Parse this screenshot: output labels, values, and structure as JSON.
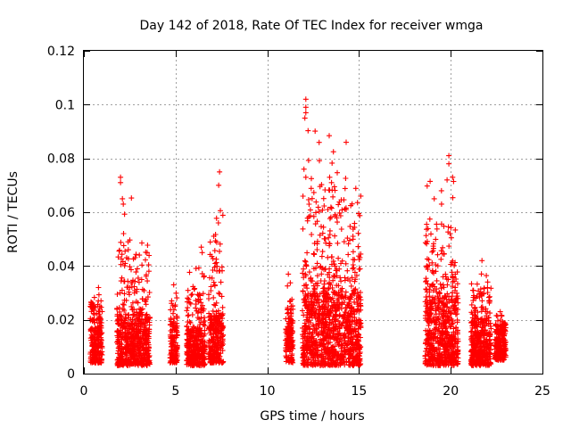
{
  "chart_data": {
    "type": "scatter",
    "title": "Day 142 of 2018, Rate Of TEC Index for receiver wmga",
    "xlabel": "GPS time / hours",
    "ylabel": "ROTI / TECUs",
    "xlim": [
      0,
      25
    ],
    "ylim": [
      0,
      0.12
    ],
    "xticks": [
      0,
      5,
      10,
      15,
      20,
      25
    ],
    "xtick_labels": [
      "0",
      "5",
      "10",
      "15",
      "20",
      "25"
    ],
    "yticks": [
      0,
      0.02,
      0.04,
      0.06,
      0.08,
      0.1,
      0.12
    ],
    "ytick_labels": [
      "0",
      "0.02",
      "0.04",
      "0.06",
      "0.08",
      "0.1",
      "0.12"
    ],
    "grid": true,
    "marker": "+",
    "series": [
      {
        "name": "ROTI",
        "color": "#ff0000",
        "clusters": [
          {
            "x_start": 0.35,
            "x_end": 1.0,
            "y_min": 0.004,
            "y_typ_max": 0.02,
            "y_peak": 0.033
          },
          {
            "x_start": 1.8,
            "x_end": 3.6,
            "y_min": 0.003,
            "y_typ_max": 0.022,
            "y_peak": 0.073
          },
          {
            "x_start": 4.7,
            "x_end": 5.1,
            "y_min": 0.004,
            "y_typ_max": 0.018,
            "y_peak": 0.033
          },
          {
            "x_start": 5.6,
            "x_end": 6.6,
            "y_min": 0.003,
            "y_typ_max": 0.016,
            "y_peak": 0.047
          },
          {
            "x_start": 6.8,
            "x_end": 7.6,
            "y_min": 0.004,
            "y_typ_max": 0.022,
            "y_peak": 0.075
          },
          {
            "x_start": 11.0,
            "x_end": 11.4,
            "y_min": 0.004,
            "y_typ_max": 0.018,
            "y_peak": 0.037
          },
          {
            "x_start": 11.9,
            "x_end": 15.1,
            "y_min": 0.003,
            "y_typ_max": 0.03,
            "y_peak": 0.102
          },
          {
            "x_start": 18.6,
            "x_end": 20.4,
            "y_min": 0.003,
            "y_typ_max": 0.028,
            "y_peak": 0.081
          },
          {
            "x_start": 21.1,
            "x_end": 22.2,
            "y_min": 0.003,
            "y_typ_max": 0.02,
            "y_peak": 0.042
          },
          {
            "x_start": 22.4,
            "x_end": 23.0,
            "y_min": 0.005,
            "y_typ_max": 0.016,
            "y_peak": 0.023
          }
        ],
        "notable_points": [
          {
            "x": 12.1,
            "y": 0.102
          },
          {
            "x": 12.1,
            "y": 0.099
          },
          {
            "x": 12.1,
            "y": 0.097
          },
          {
            "x": 12.05,
            "y": 0.095
          },
          {
            "x": 12.0,
            "y": 0.076
          },
          {
            "x": 12.1,
            "y": 0.073
          },
          {
            "x": 19.9,
            "y": 0.081
          },
          {
            "x": 19.9,
            "y": 0.078
          },
          {
            "x": 20.1,
            "y": 0.073
          },
          {
            "x": 19.8,
            "y": 0.072
          },
          {
            "x": 7.4,
            "y": 0.075
          },
          {
            "x": 7.35,
            "y": 0.07
          },
          {
            "x": 2.0,
            "y": 0.073
          },
          {
            "x": 2.0,
            "y": 0.071
          },
          {
            "x": 2.1,
            "y": 0.065
          },
          {
            "x": 2.15,
            "y": 0.063
          },
          {
            "x": 13.4,
            "y": 0.073
          },
          {
            "x": 13.5,
            "y": 0.071
          },
          {
            "x": 14.3,
            "y": 0.061
          },
          {
            "x": 19.1,
            "y": 0.065
          },
          {
            "x": 19.5,
            "y": 0.063
          },
          {
            "x": 6.4,
            "y": 0.047
          },
          {
            "x": 6.45,
            "y": 0.045
          },
          {
            "x": 21.7,
            "y": 0.042
          },
          {
            "x": 3.45,
            "y": 0.045
          },
          {
            "x": 0.8,
            "y": 0.032
          },
          {
            "x": 4.9,
            "y": 0.033
          },
          {
            "x": 11.15,
            "y": 0.037
          },
          {
            "x": 22.7,
            "y": 0.023
          }
        ]
      }
    ]
  }
}
